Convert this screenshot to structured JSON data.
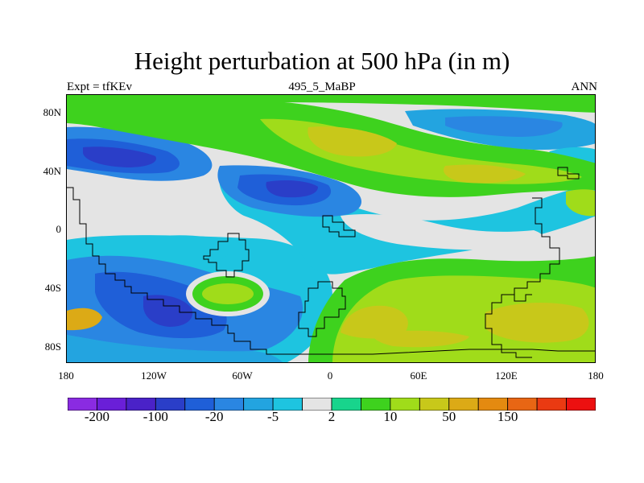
{
  "figure": {
    "title": "Height perturbation at 500 hPa (in m)",
    "left_subtitle": "Expt = tfKEv",
    "center_subtitle": "495_5_MaBP",
    "right_subtitle": "ANN"
  },
  "axes": {
    "y_ticks": [
      "80N",
      "40N",
      "0",
      "40S",
      "80S"
    ],
    "x_ticks": [
      "180",
      "120W",
      "60W",
      "0",
      "60E",
      "120E",
      "180"
    ]
  },
  "colorbar": {
    "colors": [
      "#8a2be2",
      "#6a1fd8",
      "#4a22c8",
      "#2a3ec8",
      "#1f5fd8",
      "#2a86e2",
      "#23a4e0",
      "#1ec4e0",
      "#e4e4e4",
      "#18d48c",
      "#3ed21e",
      "#a0dc1a",
      "#c8c81a",
      "#dcaa16",
      "#e48a10",
      "#e86614",
      "#ea3a12",
      "#ec1010"
    ],
    "labels": [
      "-200",
      "-100",
      "-20",
      "-5",
      "2",
      "10",
      "50",
      "150"
    ]
  },
  "palette": {
    "ocean_neutral": "#e4e4e4",
    "blue_light": "#1ec4e0",
    "blue_mid": "#2a86e2",
    "blue_deep": "#1f5fd8",
    "blue_dark": "#2a3ec8",
    "green": "#3ed21e",
    "green_light": "#18d48c",
    "yellow_green": "#a0dc1a",
    "olive": "#c8c81a",
    "orange": "#dcaa16",
    "coast": "#000000"
  }
}
